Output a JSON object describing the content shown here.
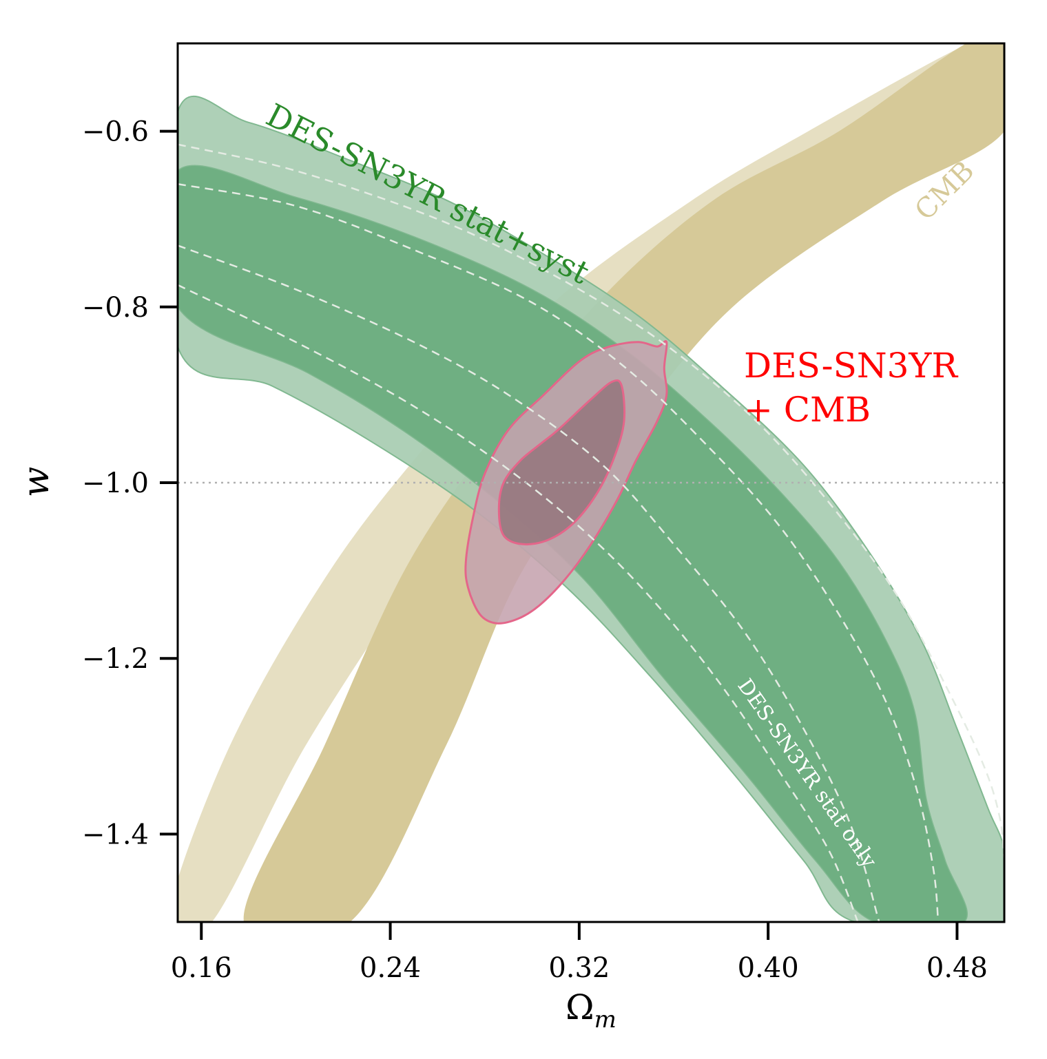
{
  "chart_data": {
    "type": "contour",
    "xlabel_base": "Ω",
    "xlabel_sub": "m",
    "ylabel": "w",
    "xlim": [
      0.15,
      0.5
    ],
    "ylim": [
      -1.5,
      -0.5
    ],
    "xticks": [
      0.16,
      0.24,
      0.32,
      0.4,
      0.48
    ],
    "xtick_labels": [
      "0.16",
      "0.24",
      "0.32",
      "0.40",
      "0.48"
    ],
    "yticks": [
      -0.6,
      -0.8,
      -1.0,
      -1.2,
      -1.4
    ],
    "ytick_labels": [
      "−0.6",
      "−0.8",
      "−1.0",
      "−1.2",
      "−1.4"
    ],
    "reference_line": {
      "w": -1.0,
      "style": "dotted"
    },
    "colors": {
      "sn_outer": "#a8ccb2",
      "sn_inner": "#6aac7e",
      "sn_edge": "#80b890",
      "cmb_outer": "#e6dfc2",
      "cmb_inner": "#d6c998",
      "combined_outer": "#c5a3ae",
      "combined_inner": "#95767d",
      "combined_edge": "#e4668a",
      "stat_only_dash": "#e4ebe3",
      "ref_line": "#b0b0b0"
    },
    "regions": [
      {
        "name": "CMB",
        "levels": {
          "outer": [
            [
              0.1645,
              -1.5
            ],
            [
              0.204,
              -1.3
            ],
            [
              0.2525,
              -1.1
            ],
            [
              0.2945,
              -0.95
            ],
            [
              0.348,
              -0.8
            ],
            [
              0.406,
              -0.68
            ],
            [
              0.455,
              -0.6
            ],
            [
              0.5,
              -0.535
            ],
            [
              0.5,
              -0.5
            ],
            [
              0.485,
              -0.5
            ],
            [
              0.417,
              -0.6
            ],
            [
              0.367,
              -0.68
            ],
            [
              0.307,
              -0.8
            ],
            [
              0.2575,
              -0.95
            ],
            [
              0.2145,
              -1.1
            ],
            [
              0.172,
              -1.3
            ],
            [
              0.1455,
              -1.5
            ]
          ],
          "inner": [
            [
              0.223,
              -1.5
            ],
            [
              0.2635,
              -1.3
            ],
            [
              0.296,
              -1.1
            ],
            [
              0.338,
              -0.95
            ],
            [
              0.385,
              -0.8
            ],
            [
              0.448,
              -0.68
            ],
            [
              0.5,
              -0.6
            ],
            [
              0.5,
              -0.5
            ],
            [
              0.484,
              -0.5
            ],
            [
              0.43,
              -0.6
            ],
            [
              0.376,
              -0.68
            ],
            [
              0.326,
              -0.8
            ],
            [
              0.283,
              -0.95
            ],
            [
              0.246,
              -1.1
            ],
            [
              0.212,
              -1.3
            ],
            [
              0.178,
              -1.5
            ]
          ]
        }
      },
      {
        "name": "DES-SN3YR stat+syst",
        "levels": {
          "outer": [
            [
              0.15,
              -0.578
            ],
            [
              0.18,
              -0.59
            ],
            [
              0.22,
              -0.63
            ],
            [
              0.265,
              -0.68
            ],
            [
              0.305,
              -0.74
            ],
            [
              0.345,
              -0.81
            ],
            [
              0.38,
              -0.89
            ],
            [
              0.415,
              -0.98
            ],
            [
              0.443,
              -1.08
            ],
            [
              0.465,
              -1.18
            ],
            [
              0.48,
              -1.28
            ],
            [
              0.493,
              -1.37
            ],
            [
              0.5,
              -1.42
            ],
            [
              0.5,
              -1.5
            ],
            [
              0.437,
              -1.5
            ],
            [
              0.415,
              -1.43
            ],
            [
              0.385,
              -1.33
            ],
            [
              0.35,
              -1.22
            ],
            [
              0.315,
              -1.12
            ],
            [
              0.275,
              -1.03
            ],
            [
              0.23,
              -0.95
            ],
            [
              0.19,
              -0.89
            ],
            [
              0.15,
              -0.845
            ]
          ],
          "inner": [
            [
              0.15,
              -0.645
            ],
            [
              0.2,
              -0.675
            ],
            [
              0.25,
              -0.72
            ],
            [
              0.3,
              -0.78
            ],
            [
              0.34,
              -0.85
            ],
            [
              0.375,
              -0.93
            ],
            [
              0.405,
              -1.01
            ],
            [
              0.43,
              -1.09
            ],
            [
              0.45,
              -1.18
            ],
            [
              0.462,
              -1.26
            ],
            [
              0.467,
              -1.36
            ],
            [
              0.475,
              -1.43
            ],
            [
              0.483,
              -1.5
            ],
            [
              0.445,
              -1.5
            ],
            [
              0.42,
              -1.43
            ],
            [
              0.39,
              -1.33
            ],
            [
              0.355,
              -1.22
            ],
            [
              0.322,
              -1.11
            ],
            [
              0.285,
              -1.02
            ],
            [
              0.245,
              -0.94
            ],
            [
              0.205,
              -0.875
            ],
            [
              0.15,
              -0.8
            ]
          ]
        }
      },
      {
        "name": "DES-SN3YR + CMB",
        "levels": {
          "outer": [
            [
              0.305,
              -0.9
            ],
            [
              0.321,
              -0.86
            ],
            [
              0.333,
              -0.845
            ],
            [
              0.345,
              -0.84
            ],
            [
              0.353,
              -0.845
            ],
            [
              0.357,
              -0.84
            ],
            [
              0.356,
              -0.87
            ],
            [
              0.357,
              -0.9
            ],
            [
              0.353,
              -0.93
            ],
            [
              0.344,
              -0.975
            ],
            [
              0.336,
              -1.02
            ],
            [
              0.325,
              -1.07
            ],
            [
              0.314,
              -1.11
            ],
            [
              0.303,
              -1.14
            ],
            [
              0.294,
              -1.155
            ],
            [
              0.285,
              -1.16
            ],
            [
              0.278,
              -1.15
            ],
            [
              0.273,
              -1.12
            ],
            [
              0.272,
              -1.09
            ],
            [
              0.275,
              -1.04
            ],
            [
              0.28,
              -0.99
            ],
            [
              0.29,
              -0.94
            ]
          ],
          "inner": [
            [
              0.311,
              -0.94
            ],
            [
              0.325,
              -0.905
            ],
            [
              0.334,
              -0.885
            ],
            [
              0.338,
              -0.89
            ],
            [
              0.339,
              -0.93
            ],
            [
              0.335,
              -0.97
            ],
            [
              0.328,
              -1.01
            ],
            [
              0.318,
              -1.045
            ],
            [
              0.307,
              -1.065
            ],
            [
              0.296,
              -1.07
            ],
            [
              0.288,
              -1.06
            ],
            [
              0.286,
              -1.03
            ],
            [
              0.288,
              -1.0
            ],
            [
              0.295,
              -0.975
            ],
            [
              0.304,
              -0.955
            ]
          ]
        }
      }
    ],
    "stat_only_contours": [
      [
        [
          0.15,
          -0.615
        ],
        [
          0.2,
          -0.645
        ],
        [
          0.26,
          -0.7
        ],
        [
          0.31,
          -0.765
        ],
        [
          0.355,
          -0.84
        ],
        [
          0.395,
          -0.93
        ],
        [
          0.428,
          -1.03
        ],
        [
          0.455,
          -1.13
        ],
        [
          0.475,
          -1.23
        ],
        [
          0.491,
          -1.32
        ],
        [
          0.498,
          -1.38
        ],
        [
          0.5,
          -1.43
        ]
      ],
      [
        [
          0.15,
          -0.66
        ],
        [
          0.2,
          -0.685
        ],
        [
          0.25,
          -0.735
        ],
        [
          0.3,
          -0.795
        ],
        [
          0.34,
          -0.87
        ],
        [
          0.375,
          -0.96
        ],
        [
          0.405,
          -1.05
        ],
        [
          0.43,
          -1.15
        ],
        [
          0.45,
          -1.25
        ],
        [
          0.463,
          -1.35
        ],
        [
          0.47,
          -1.44
        ],
        [
          0.472,
          -1.5
        ]
      ],
      [
        [
          0.15,
          -0.73
        ],
        [
          0.2,
          -0.78
        ],
        [
          0.25,
          -0.84
        ],
        [
          0.29,
          -0.9
        ],
        [
          0.33,
          -0.98
        ],
        [
          0.36,
          -1.07
        ],
        [
          0.39,
          -1.17
        ],
        [
          0.415,
          -1.28
        ],
        [
          0.435,
          -1.39
        ],
        [
          0.447,
          -1.5
        ]
      ],
      [
        [
          0.15,
          -0.775
        ],
        [
          0.2,
          -0.84
        ],
        [
          0.245,
          -0.905
        ],
        [
          0.285,
          -0.975
        ],
        [
          0.32,
          -1.05
        ],
        [
          0.35,
          -1.13
        ],
        [
          0.38,
          -1.23
        ],
        [
          0.405,
          -1.33
        ],
        [
          0.426,
          -1.42
        ],
        [
          0.438,
          -1.5
        ]
      ]
    ],
    "annotations": [
      {
        "text": "DES-SN3YR stat+syst",
        "color": "#2a8a2a"
      },
      {
        "text": "CMB",
        "color": "#d6c998"
      },
      {
        "text": "DES-SN3YR",
        "color": "#ff0000"
      },
      {
        "text": "+ CMB",
        "color": "#ff0000"
      },
      {
        "text": "DES-SN3YR stat only",
        "color": "#ffffff"
      }
    ]
  }
}
